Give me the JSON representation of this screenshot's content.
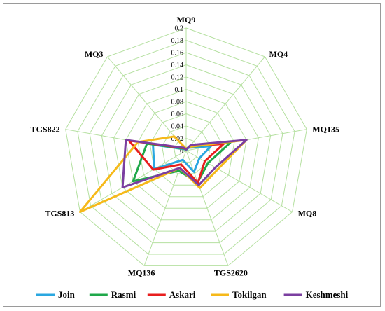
{
  "chart_data": {
    "type": "radar",
    "categories": [
      "MQ9",
      "MQ4",
      "MQ135",
      "MQ8",
      "TGS2620",
      "MQ136",
      "TGS813",
      "TGS822",
      "MQ3"
    ],
    "rticks": [
      "0",
      "0.02",
      "0.04",
      "0.06",
      "0.08",
      "0.1",
      "0.12",
      "0.14",
      "0.16",
      "0.18",
      "0.2"
    ],
    "rlim": [
      0,
      0.2
    ],
    "grid": true,
    "grid_color": "#b5e0a0",
    "legend_position": "bottom",
    "series": [
      {
        "name": "Join",
        "color": "#2aa7e0",
        "values": [
          0.001,
          0.006,
          0.041,
          0.025,
          0.037,
          0.016,
          0.06,
          0.055,
          0.003
        ]
      },
      {
        "name": "Rasmi",
        "color": "#1fa84a",
        "values": [
          0.002,
          0.008,
          0.073,
          0.041,
          0.055,
          0.035,
          0.1,
          0.065,
          0.004
        ]
      },
      {
        "name": "Askari",
        "color": "#e81e1e",
        "values": [
          0.002,
          0.01,
          0.062,
          0.035,
          0.056,
          0.024,
          0.062,
          0.095,
          0.005
        ]
      },
      {
        "name": "Tokilgan",
        "color": "#f6b91a",
        "values": [
          0.003,
          0.008,
          0.1,
          0.06,
          0.065,
          0.03,
          0.2,
          0.08,
          0.03
        ]
      },
      {
        "name": "Keshmeshi",
        "color": "#7b3fa0",
        "values": [
          0.002,
          0.012,
          0.1,
          0.055,
          0.06,
          0.03,
          0.12,
          0.1,
          0.006
        ]
      }
    ]
  }
}
